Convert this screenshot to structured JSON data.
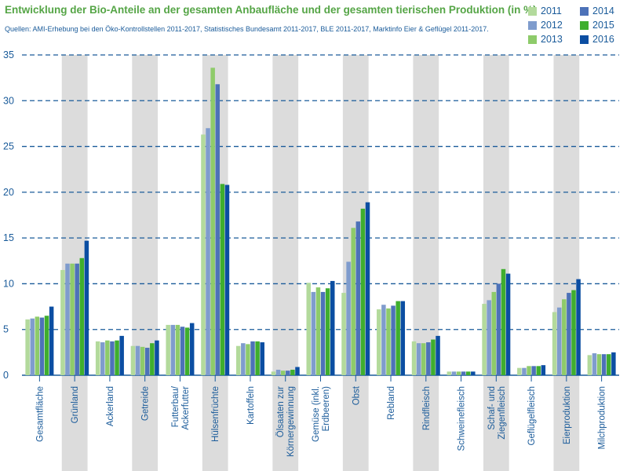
{
  "title": "Entwicklung der Bio-Anteile an der gesamten Anbaufläche und der gesamten tierischen Produktion (in %)",
  "subtitle": "Quellen: AMI-Erhebung bei den Öko-Kontrollstellen 2011-2017, Statistisches Bundesamt 2011-2017, BLE 2011-2017, Marktinfo Eier & Geflügel 2011-2017.",
  "colors": {
    "2011": "#b3da9c",
    "2012": "#7f9ccd",
    "2013": "#8ecb6a",
    "2014": "#4d72b8",
    "2015": "#3fae2e",
    "2016": "#0b4ea2",
    "title": "#55a546",
    "text": "#1a5b9a",
    "grid": "#1a5b9a",
    "band": "#dcdcdc"
  },
  "chart_data": {
    "type": "bar",
    "title": "Entwicklung der Bio-Anteile an der gesamten Anbaufläche und der gesamten tierischen Produktion (in %)",
    "ylim": [
      0,
      35
    ],
    "yticks": [
      "0",
      "5",
      "10",
      "15",
      "20",
      "25",
      "30",
      "35"
    ],
    "grid": true,
    "legend_position": "top-right",
    "categories": [
      "Gesamtfläche",
      "Grünland",
      "Ackerland",
      "Getreide",
      "Futterbau/ Ackerfutter",
      "Hülsenfrüchte",
      "Kartoffeln",
      "Ölsaaten zur Körnergewinnung",
      "Gemüse (inkl. Erdbeeren)",
      "Obst",
      "Rebland",
      "Rindfleisch",
      "Schweinefleisch",
      "Schaf- und Ziegenfleisch",
      "Geflügelfleisch",
      "Eierproduktion",
      "Milchproduktion"
    ],
    "category_lines": [
      [
        "Gesamtfläche"
      ],
      [
        "Grünland"
      ],
      [
        "Ackerland"
      ],
      [
        "Getreide"
      ],
      [
        "Futterbau/",
        "Ackerfutter"
      ],
      [
        "Hülsenfrüchte"
      ],
      [
        "Kartoffeln"
      ],
      [
        "Ölsaaten zur",
        "Körnergewinnung"
      ],
      [
        "Gemüse (inkl.",
        "Erdbeeren)"
      ],
      [
        "Obst"
      ],
      [
        "Rebland"
      ],
      [
        "Rindfleisch"
      ],
      [
        "Schweinefleisch"
      ],
      [
        "Schaf- und",
        "Ziegenfleisch"
      ],
      [
        "Geflügelfleisch"
      ],
      [
        "Eierproduktion"
      ],
      [
        "Milchproduktion"
      ]
    ],
    "series": [
      {
        "name": "2011",
        "values": [
          6.1,
          11.5,
          3.7,
          3.2,
          5.5,
          26.3,
          3.2,
          0.4,
          10.1,
          9.0,
          7.2,
          3.7,
          0.4,
          7.8,
          0.8,
          6.9,
          2.2
        ]
      },
      {
        "name": "2012",
        "values": [
          6.2,
          12.2,
          3.6,
          3.2,
          5.5,
          27.0,
          3.5,
          0.6,
          9.1,
          12.4,
          7.7,
          3.5,
          0.4,
          8.2,
          0.8,
          7.4,
          2.4
        ]
      },
      {
        "name": "2013",
        "values": [
          6.4,
          12.2,
          3.8,
          3.1,
          5.5,
          33.6,
          3.4,
          0.5,
          9.6,
          16.1,
          7.3,
          3.5,
          0.4,
          9.1,
          1.0,
          8.3,
          2.3
        ]
      },
      {
        "name": "2014",
        "values": [
          6.3,
          12.2,
          3.7,
          3.0,
          5.3,
          31.8,
          3.7,
          0.5,
          9.1,
          16.8,
          7.6,
          3.6,
          0.4,
          10.0,
          1.0,
          9.0,
          2.3
        ]
      },
      {
        "name": "2015",
        "values": [
          6.5,
          12.8,
          3.8,
          3.5,
          5.2,
          20.9,
          3.7,
          0.6,
          9.5,
          18.2,
          8.1,
          3.9,
          0.4,
          11.6,
          1.0,
          9.3,
          2.3
        ]
      },
      {
        "name": "2016",
        "values": [
          7.5,
          14.7,
          4.3,
          3.8,
          5.7,
          20.8,
          3.6,
          0.9,
          10.3,
          18.9,
          8.1,
          4.3,
          0.4,
          11.1,
          1.1,
          10.5,
          2.5
        ]
      }
    ]
  }
}
